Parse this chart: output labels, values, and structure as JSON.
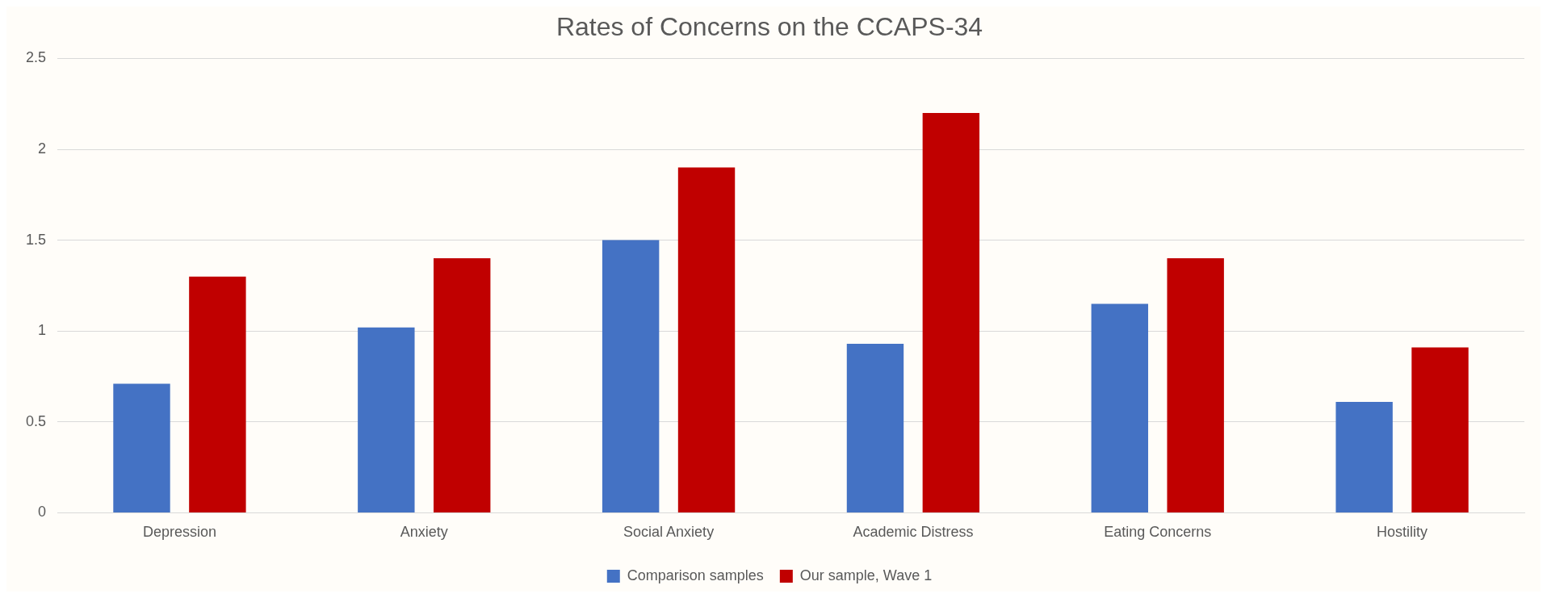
{
  "chart_data": {
    "type": "bar",
    "title": "Rates of Concerns on the CCAPS-34",
    "categories": [
      "Depression",
      "Anxiety",
      "Social Anxiety",
      "Academic Distress",
      "Eating Concerns",
      "Hostility"
    ],
    "series": [
      {
        "name": "Comparison samples",
        "color": "#4472c4",
        "values": [
          0.71,
          1.02,
          1.5,
          0.93,
          1.15,
          0.61
        ]
      },
      {
        "name": "Our sample, Wave 1",
        "color": "#c00000",
        "values": [
          1.3,
          1.4,
          1.9,
          2.2,
          1.4,
          0.91
        ]
      }
    ],
    "ylim": [
      0,
      2.5
    ],
    "yticks": [
      0,
      0.5,
      1,
      1.5,
      2,
      2.5
    ],
    "grid": "y",
    "legend": "bottom"
  }
}
